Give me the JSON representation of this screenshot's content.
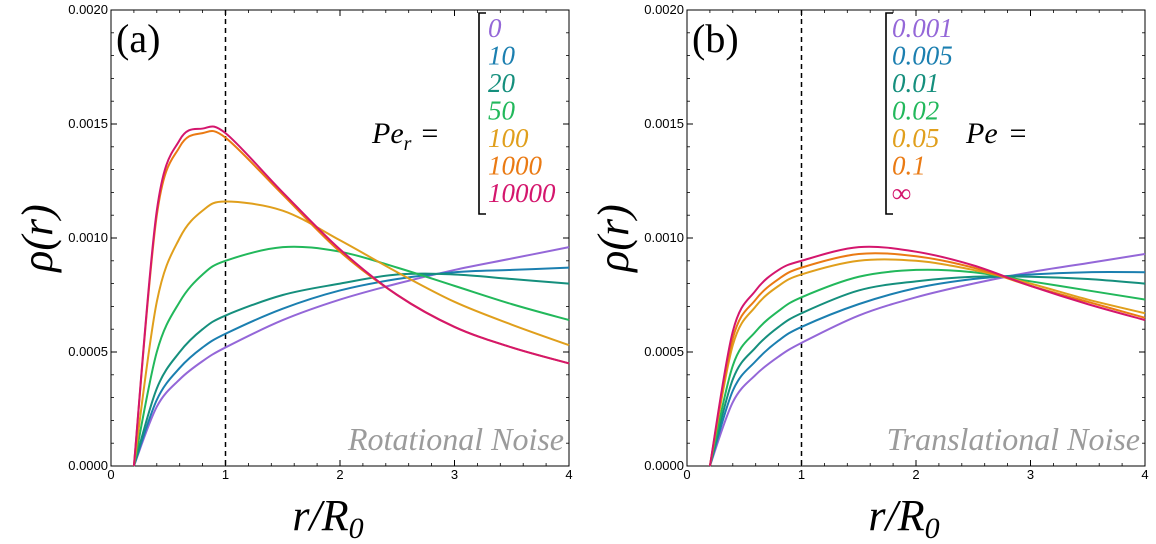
{
  "colors": [
    "#9467d8",
    "#1b7fb0",
    "#158f7d",
    "#22b85b",
    "#e09f1c",
    "#ea7a13",
    "#d4166d"
  ],
  "chart_data": [
    {
      "type": "line",
      "panel_label": "(a)",
      "annotation": "Rotational Noise",
      "xlabel": "r/R",
      "xlabel_sub": "0",
      "ylabel": "ρ(r)",
      "xlim": [
        0,
        4
      ],
      "ylim": [
        0,
        0.002
      ],
      "x_ticks": [
        "0",
        "1",
        "2",
        "3",
        "4"
      ],
      "y_ticks": [
        "0.0000",
        "0.0005",
        "0.0010",
        "0.0015",
        "0.0020"
      ],
      "reference_line_x": 1,
      "legend_title_main": "Pe",
      "legend_title_sub": "r",
      "legend_title_eq": "=",
      "legend_entries": [
        "0",
        "10",
        "20",
        "50",
        "100",
        "1000",
        "10000"
      ],
      "x": [
        0.2,
        0.4,
        0.6,
        0.8,
        1.0,
        1.5,
        2.0,
        2.5,
        3.0,
        3.5,
        4.0
      ],
      "series": [
        {
          "name": "0",
          "values": [
            0,
            0.00026,
            0.00038,
            0.00046,
            0.00052,
            0.00064,
            0.00073,
            0.0008,
            0.00086,
            0.00091,
            0.00096
          ]
        },
        {
          "name": "10",
          "values": [
            0,
            0.00029,
            0.00043,
            0.00052,
            0.00058,
            0.00069,
            0.00077,
            0.00082,
            0.00085,
            0.00086,
            0.00087
          ]
        },
        {
          "name": "20",
          "values": [
            0,
            0.00034,
            0.0005,
            0.0006,
            0.00066,
            0.00075,
            0.0008,
            0.00084,
            0.00084,
            0.00082,
            0.0008
          ]
        },
        {
          "name": "50",
          "values": [
            0,
            0.0005,
            0.00072,
            0.00084,
            0.0009,
            0.00096,
            0.00094,
            0.00087,
            0.00079,
            0.00071,
            0.00064
          ]
        },
        {
          "name": "100",
          "values": [
            0,
            0.00072,
            0.001,
            0.00112,
            0.00116,
            0.00112,
            0.00099,
            0.00085,
            0.00072,
            0.00062,
            0.00053
          ]
        },
        {
          "name": "1000",
          "values": [
            0,
            0.0011,
            0.0014,
            0.00146,
            0.00144,
            0.00119,
            0.00094,
            0.00075,
            0.00061,
            0.00052,
            0.00045
          ]
        },
        {
          "name": "10000",
          "values": [
            0,
            0.00112,
            0.00143,
            0.00148,
            0.00146,
            0.0012,
            0.00095,
            0.00075,
            0.00061,
            0.00052,
            0.00045
          ]
        }
      ]
    },
    {
      "type": "line",
      "panel_label": "(b)",
      "annotation": "Translational Noise",
      "xlabel": "r/R",
      "xlabel_sub": "0",
      "ylabel": "ρ(r)",
      "xlim": [
        0,
        4
      ],
      "ylim": [
        0,
        0.002
      ],
      "x_ticks": [
        "0",
        "1",
        "2",
        "3",
        "4"
      ],
      "y_ticks": [
        "0.0000",
        "0.0005",
        "0.0010",
        "0.0015",
        "0.0020"
      ],
      "reference_line_x": 1,
      "legend_title_main": "Pe",
      "legend_title_sub": "",
      "legend_title_eq": "=",
      "legend_entries": [
        "0.001",
        "0.005",
        "0.01",
        "0.02",
        "0.05",
        "0.1",
        "∞"
      ],
      "x": [
        0.2,
        0.4,
        0.6,
        0.8,
        1.0,
        1.5,
        2.0,
        2.5,
        3.0,
        3.5,
        4.0
      ],
      "series": [
        {
          "name": "0.001",
          "values": [
            0,
            0.00028,
            0.0004,
            0.00048,
            0.00054,
            0.00066,
            0.00074,
            0.0008,
            0.00085,
            0.00089,
            0.00093
          ]
        },
        {
          "name": "0.005",
          "values": [
            0,
            0.00033,
            0.00046,
            0.00055,
            0.00061,
            0.00071,
            0.00078,
            0.00082,
            0.00084,
            0.00085,
            0.00085
          ]
        },
        {
          "name": "0.01",
          "values": [
            0,
            0.00038,
            0.00052,
            0.00061,
            0.00067,
            0.00077,
            0.00081,
            0.00083,
            0.00083,
            0.00082,
            0.0008
          ]
        },
        {
          "name": "0.02",
          "values": [
            0,
            0.00044,
            0.00059,
            0.00068,
            0.00074,
            0.00083,
            0.00086,
            0.00085,
            0.00081,
            0.00077,
            0.00073
          ]
        },
        {
          "name": "0.05",
          "values": [
            0,
            0.00053,
            0.0007,
            0.00079,
            0.00084,
            0.0009,
            0.0009,
            0.00086,
            0.0008,
            0.00073,
            0.00067
          ]
        },
        {
          "name": "0.1",
          "values": [
            0,
            0.00056,
            0.00073,
            0.00082,
            0.00087,
            0.00093,
            0.00092,
            0.00087,
            0.00079,
            0.00072,
            0.00065
          ]
        },
        {
          "name": "∞",
          "values": [
            0,
            0.00059,
            0.00077,
            0.00086,
            0.0009,
            0.00096,
            0.00094,
            0.00088,
            0.00079,
            0.00071,
            0.00064
          ]
        }
      ]
    }
  ]
}
